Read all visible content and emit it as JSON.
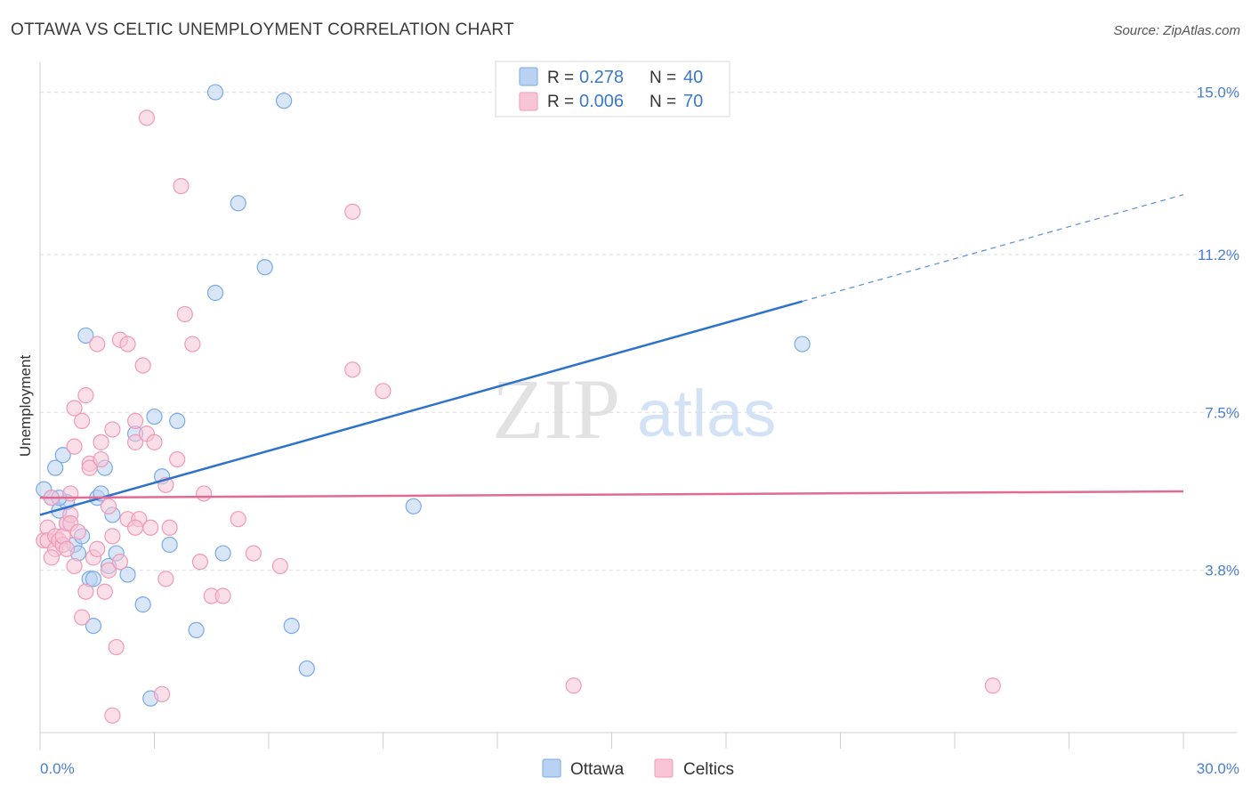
{
  "chart_data": {
    "type": "scatter",
    "title": "OTTAWA VS CELTIC UNEMPLOYMENT CORRELATION CHART",
    "source": "Source: ZipAtlas.com",
    "ylabel": "Unemployment",
    "xlabel": "",
    "xlim": [
      0,
      30
    ],
    "ylim": [
      0,
      15.7
    ],
    "x_tick_labels": [
      "0.0%",
      "30.0%"
    ],
    "y_ticks": [
      3.8,
      7.5,
      11.2,
      15.0
    ],
    "y_tick_labels": [
      "3.8%",
      "7.5%",
      "11.2%",
      "15.0%"
    ],
    "watermark": {
      "zip": "ZIP",
      "atlas": "atlas"
    },
    "legend": {
      "r_label": "R =",
      "n_label": "N =",
      "entries": [
        {
          "name": "Ottawa",
          "r": "0.278",
          "n": "40"
        },
        {
          "name": "Celtics",
          "r": "0.006",
          "n": "70"
        }
      ]
    },
    "series": [
      {
        "name": "Ottawa",
        "color": "#7aaae6",
        "fill": "#b9d2f2",
        "line_color": "#2f72cc",
        "trend": {
          "x0": 0,
          "y0": 5.1,
          "x1": 20,
          "y1": 10.1,
          "x_dash_end": 30,
          "y_dash_end": 12.6
        },
        "points": [
          [
            0.1,
            5.7
          ],
          [
            0.3,
            5.5
          ],
          [
            0.4,
            6.2
          ],
          [
            0.5,
            5.2
          ],
          [
            0.6,
            6.5
          ],
          [
            0.7,
            5.4
          ],
          [
            0.7,
            4.9
          ],
          [
            0.9,
            4.4
          ],
          [
            1.0,
            4.2
          ],
          [
            1.1,
            4.6
          ],
          [
            1.2,
            9.3
          ],
          [
            1.3,
            3.6
          ],
          [
            1.4,
            3.6
          ],
          [
            1.4,
            2.5
          ],
          [
            1.5,
            5.5
          ],
          [
            1.6,
            5.6
          ],
          [
            1.7,
            6.2
          ],
          [
            1.8,
            3.9
          ],
          [
            1.9,
            5.1
          ],
          [
            2.0,
            4.2
          ],
          [
            2.3,
            3.7
          ],
          [
            2.5,
            7.0
          ],
          [
            2.7,
            3.0
          ],
          [
            2.9,
            0.8
          ],
          [
            3.0,
            7.4
          ],
          [
            3.2,
            6.0
          ],
          [
            3.4,
            4.4
          ],
          [
            3.6,
            7.3
          ],
          [
            4.1,
            2.4
          ],
          [
            4.6,
            10.3
          ],
          [
            4.8,
            4.2
          ],
          [
            4.6,
            15.0
          ],
          [
            5.2,
            12.4
          ],
          [
            5.9,
            10.9
          ],
          [
            6.4,
            14.8
          ],
          [
            6.6,
            2.5
          ],
          [
            7.0,
            1.5
          ],
          [
            9.8,
            5.3
          ],
          [
            20.0,
            9.1
          ],
          [
            0.5,
            5.5
          ]
        ]
      },
      {
        "name": "Celtics",
        "color": "#f09ab8",
        "fill": "#f8c5d6",
        "line_color": "#e26b96",
        "trend": {
          "x0": 0,
          "y0": 5.5,
          "x1": 30,
          "y1": 5.65
        },
        "points": [
          [
            0.1,
            4.5
          ],
          [
            0.2,
            4.8
          ],
          [
            0.2,
            4.5
          ],
          [
            0.3,
            5.5
          ],
          [
            0.4,
            4.3
          ],
          [
            0.4,
            4.6
          ],
          [
            0.5,
            4.5
          ],
          [
            0.6,
            4.4
          ],
          [
            0.6,
            4.6
          ],
          [
            0.7,
            4.9
          ],
          [
            0.7,
            4.3
          ],
          [
            0.8,
            5.1
          ],
          [
            0.8,
            5.6
          ],
          [
            0.8,
            4.9
          ],
          [
            0.9,
            3.9
          ],
          [
            0.9,
            7.6
          ],
          [
            1.0,
            4.7
          ],
          [
            1.1,
            2.7
          ],
          [
            1.1,
            7.3
          ],
          [
            1.2,
            3.3
          ],
          [
            1.2,
            7.9
          ],
          [
            1.3,
            6.3
          ],
          [
            1.3,
            6.2
          ],
          [
            1.4,
            4.1
          ],
          [
            1.5,
            9.1
          ],
          [
            1.5,
            4.3
          ],
          [
            1.6,
            6.4
          ],
          [
            1.6,
            6.8
          ],
          [
            1.7,
            3.3
          ],
          [
            1.8,
            5.3
          ],
          [
            1.8,
            3.8
          ],
          [
            1.9,
            7.1
          ],
          [
            1.9,
            4.6
          ],
          [
            2.0,
            2.0
          ],
          [
            2.1,
            9.2
          ],
          [
            2.1,
            4.0
          ],
          [
            2.3,
            9.1
          ],
          [
            2.3,
            5.0
          ],
          [
            2.5,
            6.8
          ],
          [
            2.5,
            7.3
          ],
          [
            2.6,
            5.0
          ],
          [
            2.7,
            8.6
          ],
          [
            2.8,
            7.0
          ],
          [
            2.8,
            14.4
          ],
          [
            2.9,
            4.8
          ],
          [
            3.0,
            6.8
          ],
          [
            3.2,
            0.9
          ],
          [
            3.3,
            3.6
          ],
          [
            3.3,
            5.8
          ],
          [
            3.4,
            4.8
          ],
          [
            3.6,
            6.4
          ],
          [
            3.7,
            12.8
          ],
          [
            3.8,
            9.8
          ],
          [
            4.0,
            9.1
          ],
          [
            4.2,
            4.0
          ],
          [
            4.3,
            5.6
          ],
          [
            4.5,
            3.2
          ],
          [
            4.8,
            3.2
          ],
          [
            5.2,
            5.0
          ],
          [
            5.6,
            4.2
          ],
          [
            6.3,
            3.9
          ],
          [
            8.2,
            12.2
          ],
          [
            8.2,
            8.5
          ],
          [
            9.0,
            8.0
          ],
          [
            14.0,
            1.1
          ],
          [
            25.0,
            1.1
          ],
          [
            0.3,
            4.1
          ],
          [
            1.9,
            0.4
          ],
          [
            0.9,
            6.7
          ],
          [
            2.5,
            4.8
          ]
        ]
      }
    ]
  }
}
